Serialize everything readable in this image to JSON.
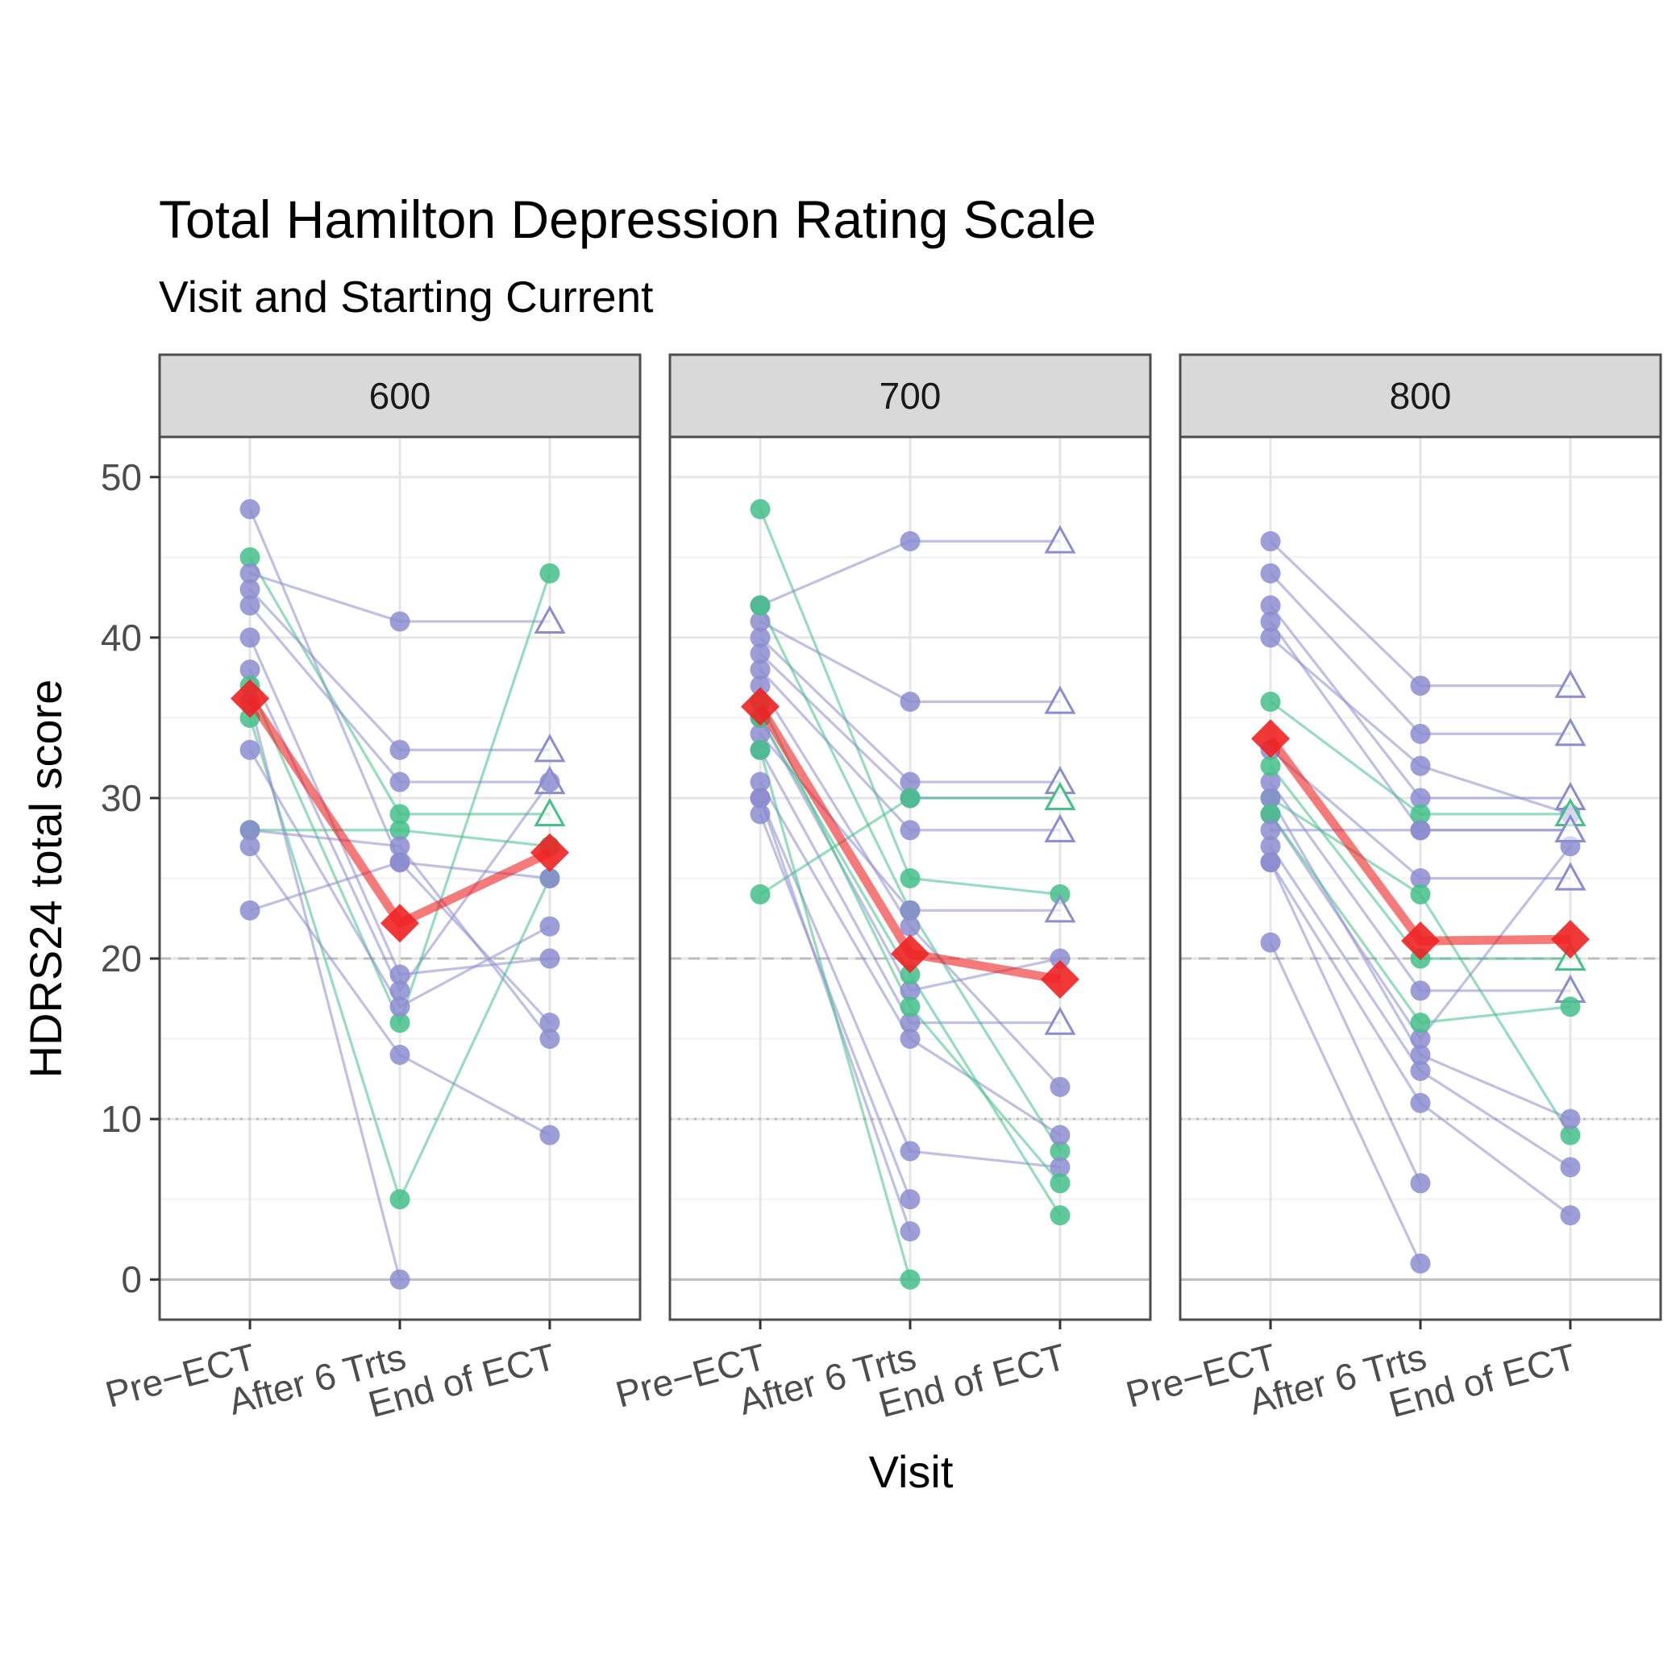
{
  "chart_data": {
    "type": "line",
    "title": "Total Hamilton Depression Rating Scale",
    "subtitle": "Visit and Starting Current",
    "xlabel": "Visit",
    "ylabel": "HDRS24 total score",
    "categories": [
      "Pre−ECT",
      "After 6 Trts",
      "End of ECT"
    ],
    "ylim": [
      -2.5,
      52.5
    ],
    "yticks": [
      "0",
      "10",
      "20",
      "30",
      "40",
      "50"
    ],
    "yticks_values": [
      0,
      10,
      20,
      30,
      40,
      50
    ],
    "reference_lines": [
      {
        "y": 20,
        "style": "dashed"
      },
      {
        "y": 10,
        "style": "dotted"
      }
    ],
    "grid": true,
    "colors": {
      "series_a": "#8c8cd0",
      "series_b": "#44c08a",
      "mean": "#ee2222"
    },
    "markers": "circle = observed; open triangle = carried forward at End of ECT; diamond = mean",
    "panels": [
      {
        "label": "600",
        "mean": [
          36.2,
          22.2,
          26.6
        ],
        "subjects": [
          {
            "group": "a",
            "values": [
              48,
              26,
              16
            ]
          },
          {
            "group": "b",
            "values": [
              45,
              29,
              29
            ]
          },
          {
            "group": "a",
            "values": [
              44,
              41,
              41
            ]
          },
          {
            "group": "a",
            "values": [
              43,
              33,
              33
            ]
          },
          {
            "group": "a",
            "values": [
              42,
              31,
              31
            ]
          },
          {
            "group": "a",
            "values": [
              40,
              19,
              20
            ]
          },
          {
            "group": "a",
            "values": [
              38,
              18,
              31
            ]
          },
          {
            "group": "b",
            "values": [
              37,
              16,
              44
            ]
          },
          {
            "group": "b",
            "values": [
              35,
              5,
              25
            ]
          },
          {
            "group": "a",
            "values": [
              33,
              17,
              22
            ]
          },
          {
            "group": "b",
            "values": [
              28,
              28,
              27
            ]
          },
          {
            "group": "a",
            "values": [
              28,
              27,
              15
            ]
          },
          {
            "group": "a",
            "values": [
              27,
              14,
              9
            ]
          },
          {
            "group": "a",
            "values": [
              23,
              26,
              25
            ]
          },
          {
            "group": "a",
            "values": [
              36,
              0,
              null
            ]
          }
        ]
      },
      {
        "label": "700",
        "mean": [
          35.7,
          20.3,
          18.7
        ],
        "subjects": [
          {
            "group": "b",
            "values": [
              48,
              25,
              24
            ]
          },
          {
            "group": "a",
            "values": [
              42,
              46,
              46
            ]
          },
          {
            "group": "a",
            "values": [
              41,
              36,
              36
            ]
          },
          {
            "group": "a",
            "values": [
              40,
              31,
              31
            ]
          },
          {
            "group": "a",
            "values": [
              39,
              30,
              30
            ]
          },
          {
            "group": "b",
            "values": [
              42,
              23,
              8
            ]
          },
          {
            "group": "a",
            "values": [
              38,
              28,
              28
            ]
          },
          {
            "group": "a",
            "values": [
              37,
              22,
              12
            ]
          },
          {
            "group": "a",
            "values": [
              35,
              18,
              20
            ]
          },
          {
            "group": "a",
            "values": [
              34,
              23,
              23
            ]
          },
          {
            "group": "a",
            "values": [
              33,
              16,
              16
            ]
          },
          {
            "group": "a",
            "values": [
              31,
              15,
              9
            ]
          },
          {
            "group": "a",
            "values": [
              30,
              8,
              7
            ]
          },
          {
            "group": "b",
            "values": [
              24,
              30,
              30
            ]
          },
          {
            "group": "a",
            "values": [
              29,
              5,
              null
            ]
          },
          {
            "group": "a",
            "values": [
              30,
              3,
              null
            ]
          },
          {
            "group": "b",
            "values": [
              33,
              0,
              null
            ]
          },
          {
            "group": "b",
            "values": [
              36,
              17,
              6
            ]
          },
          {
            "group": "b",
            "values": [
              35,
              19,
              4
            ]
          }
        ]
      },
      {
        "label": "800",
        "mean": [
          33.7,
          21.1,
          21.2
        ],
        "subjects": [
          {
            "group": "a",
            "values": [
              46,
              37,
              37
            ]
          },
          {
            "group": "a",
            "values": [
              44,
              34,
              34
            ]
          },
          {
            "group": "a",
            "values": [
              42,
              30,
              30
            ]
          },
          {
            "group": "a",
            "values": [
              41,
              28,
              28
            ]
          },
          {
            "group": "a",
            "values": [
              40,
              32,
              29
            ]
          },
          {
            "group": "b",
            "values": [
              36,
              29,
              29
            ]
          },
          {
            "group": "a",
            "values": [
              33,
              25,
              25
            ]
          },
          {
            "group": "b",
            "values": [
              30,
              24,
              9
            ]
          },
          {
            "group": "a",
            "values": [
              31,
              18,
              18
            ]
          },
          {
            "group": "b",
            "values": [
              32,
              20,
              20
            ]
          },
          {
            "group": "a",
            "values": [
              29,
              15,
              27
            ]
          },
          {
            "group": "a",
            "values": [
              30,
              14,
              10
            ]
          },
          {
            "group": "a",
            "values": [
              27,
              13,
              7
            ]
          },
          {
            "group": "a",
            "values": [
              26,
              11,
              4
            ]
          },
          {
            "group": "b",
            "values": [
              29,
              16,
              17
            ]
          },
          {
            "group": "a",
            "values": [
              26,
              6,
              null
            ]
          },
          {
            "group": "a",
            "values": [
              21,
              1,
              null
            ]
          },
          {
            "group": "a",
            "values": [
              28,
              28,
              28
            ]
          }
        ]
      }
    ]
  }
}
